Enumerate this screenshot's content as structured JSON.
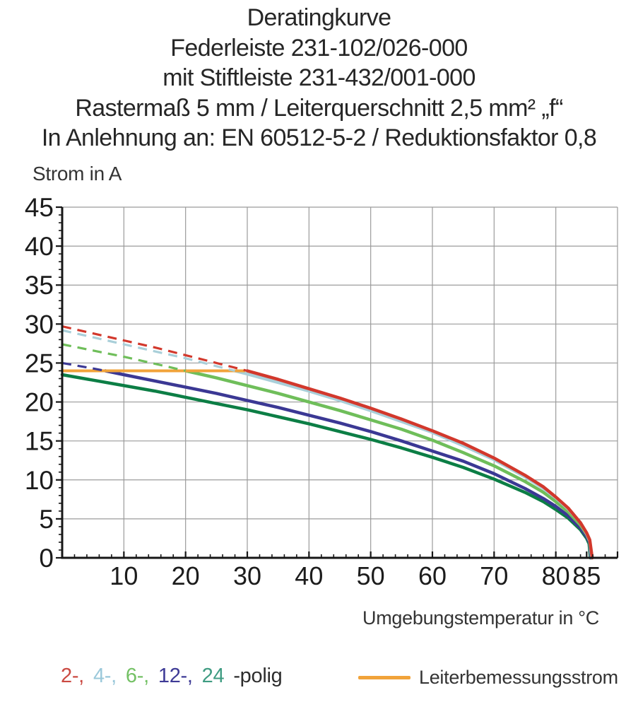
{
  "title": {
    "lines": [
      "Deratingkurve",
      "Federleiste 231-102/026-000",
      "mit Stiftleiste 231-432/001-000",
      "Rastermaß 5 mm / Leiterquerschnitt 2,5 mm² „f“",
      "In Anlehnung an: EN 60512-5-2 / Reduktionsfaktor 0,8"
    ]
  },
  "chart_data": {
    "type": "line",
    "xlabel": "Umgebungstemperatur in °C",
    "ylabel": "Strom in A",
    "xlim": [
      0,
      90
    ],
    "ylim": [
      0,
      45
    ],
    "x_major_ticks": [
      10,
      20,
      30,
      40,
      50,
      60,
      70,
      80,
      85
    ],
    "y_major_ticks": [
      0,
      5,
      10,
      15,
      20,
      25,
      30,
      35,
      40,
      45
    ],
    "x_minor_step": 2,
    "y_minor_step": 1,
    "grid": true,
    "grid_color": "#9b9b9b",
    "axis_color": "#161616",
    "tick_label_color": "#1c1c1c",
    "legend_position": "bottom",
    "series": [
      {
        "id": "2-polig",
        "poles": 2,
        "color": "#d2382c",
        "dash_until": 30,
        "points": [
          [
            0,
            29.7
          ],
          [
            5,
            28.8
          ],
          [
            10,
            27.9
          ],
          [
            15,
            27.0
          ],
          [
            20,
            26.0
          ],
          [
            25,
            25.0
          ],
          [
            30,
            24.0
          ],
          [
            35,
            22.9
          ],
          [
            40,
            21.7
          ],
          [
            45,
            20.5
          ],
          [
            50,
            19.2
          ],
          [
            55,
            17.8
          ],
          [
            60,
            16.3
          ],
          [
            65,
            14.7
          ],
          [
            70,
            12.8
          ],
          [
            75,
            10.6
          ],
          [
            78,
            9.1
          ],
          [
            80,
            7.8
          ],
          [
            82,
            6.4
          ],
          [
            84,
            4.5
          ],
          [
            85,
            3.2
          ],
          [
            85.5,
            2.3
          ],
          [
            85.9,
            0
          ]
        ]
      },
      {
        "id": "4-polig",
        "poles": 4,
        "color": "#a9cfd9",
        "dash_until": 28,
        "points": [
          [
            0,
            29.2
          ],
          [
            5,
            28.3
          ],
          [
            10,
            27.4
          ],
          [
            15,
            26.5
          ],
          [
            20,
            25.6
          ],
          [
            25,
            24.6
          ],
          [
            28,
            24.0
          ],
          [
            30,
            23.6
          ],
          [
            35,
            22.5
          ],
          [
            40,
            21.4
          ],
          [
            45,
            20.2
          ],
          [
            50,
            18.9
          ],
          [
            55,
            17.5
          ],
          [
            60,
            16.1
          ],
          [
            65,
            14.4
          ],
          [
            70,
            12.6
          ],
          [
            75,
            10.4
          ],
          [
            78,
            8.9
          ],
          [
            80,
            7.7
          ],
          [
            82,
            6.3
          ],
          [
            84,
            4.5
          ],
          [
            85,
            3.1
          ],
          [
            85.5,
            2.2
          ],
          [
            85.8,
            0
          ]
        ]
      },
      {
        "id": "6-polig",
        "poles": 6,
        "color": "#6fbe5a",
        "dash_until": 20,
        "points": [
          [
            0,
            27.4
          ],
          [
            5,
            26.6
          ],
          [
            10,
            25.8
          ],
          [
            15,
            24.9
          ],
          [
            20,
            24.0
          ],
          [
            25,
            23.1
          ],
          [
            30,
            22.1
          ],
          [
            35,
            21.1
          ],
          [
            40,
            20.0
          ],
          [
            45,
            18.9
          ],
          [
            50,
            17.7
          ],
          [
            55,
            16.5
          ],
          [
            60,
            15.1
          ],
          [
            65,
            13.5
          ],
          [
            70,
            11.8
          ],
          [
            75,
            9.8
          ],
          [
            78,
            8.4
          ],
          [
            80,
            7.2
          ],
          [
            82,
            5.9
          ],
          [
            84,
            4.2
          ],
          [
            85,
            3.0
          ],
          [
            85.5,
            2.1
          ],
          [
            85.8,
            0
          ]
        ]
      },
      {
        "id": "12-polig",
        "poles": 12,
        "color": "#3b3894",
        "dash_until": 7,
        "points": [
          [
            0,
            25.0
          ],
          [
            5,
            24.3
          ],
          [
            7,
            24.0
          ],
          [
            10,
            23.5
          ],
          [
            15,
            22.7
          ],
          [
            20,
            21.9
          ],
          [
            25,
            21.1
          ],
          [
            30,
            20.2
          ],
          [
            35,
            19.3
          ],
          [
            40,
            18.3
          ],
          [
            45,
            17.3
          ],
          [
            50,
            16.2
          ],
          [
            55,
            15.0
          ],
          [
            60,
            13.7
          ],
          [
            65,
            12.4
          ],
          [
            70,
            10.8
          ],
          [
            75,
            8.9
          ],
          [
            78,
            7.6
          ],
          [
            80,
            6.6
          ],
          [
            82,
            5.4
          ],
          [
            84,
            3.8
          ],
          [
            85,
            2.7
          ],
          [
            85.5,
            1.9
          ],
          [
            85.7,
            0
          ]
        ]
      },
      {
        "id": "24-polig",
        "poles": 24,
        "color": "#0c7e45",
        "dash_until": null,
        "points": [
          [
            0,
            23.5
          ],
          [
            5,
            22.8
          ],
          [
            10,
            22.1
          ],
          [
            15,
            21.4
          ],
          [
            20,
            20.6
          ],
          [
            25,
            19.8
          ],
          [
            30,
            19.0
          ],
          [
            35,
            18.1
          ],
          [
            40,
            17.2
          ],
          [
            45,
            16.2
          ],
          [
            50,
            15.2
          ],
          [
            55,
            14.1
          ],
          [
            60,
            12.9
          ],
          [
            65,
            11.6
          ],
          [
            70,
            10.1
          ],
          [
            75,
            8.4
          ],
          [
            78,
            7.2
          ],
          [
            80,
            6.2
          ],
          [
            82,
            5.1
          ],
          [
            84,
            3.6
          ],
          [
            85,
            2.5
          ],
          [
            85.4,
            1.8
          ],
          [
            85.6,
            0
          ]
        ]
      }
    ],
    "reference_line": {
      "label": "Leiterbemessungsstrom",
      "value": 24,
      "x_range": [
        0,
        29.5
      ],
      "color": "#f1a33a"
    }
  },
  "legend": {
    "pole_items": [
      {
        "label": "2-,",
        "color": "#cb4a42"
      },
      {
        "label": "4-,",
        "color": "#9ac8da"
      },
      {
        "label": "6-,",
        "color": "#74c165"
      },
      {
        "label": "12-,",
        "color": "#3e3b96"
      },
      {
        "label": "24",
        "color": "#3f9c82"
      }
    ],
    "polig_suffix": "-polig",
    "suffix_color": "#2d2d2d",
    "reference_label": "Leiterbemessungsstrom"
  }
}
